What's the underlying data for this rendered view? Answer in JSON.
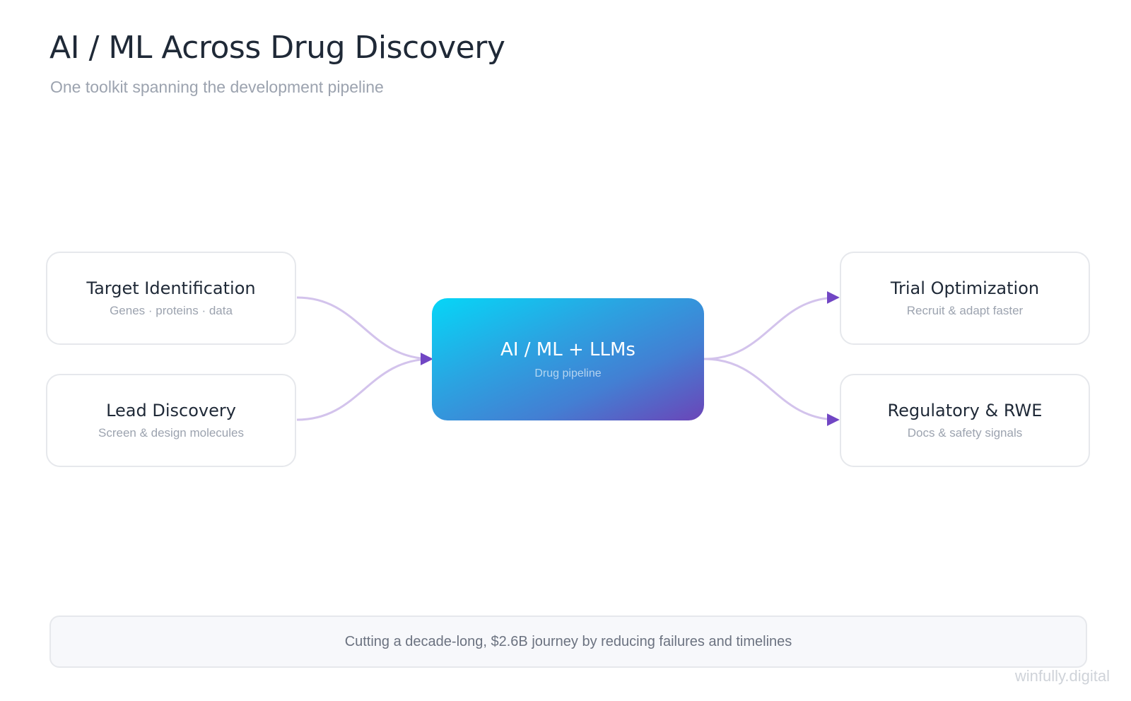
{
  "title": "AI / ML Across Drug Discovery",
  "subtitle": "One toolkit spanning the development pipeline",
  "center": {
    "title": "AI / ML + LLMs",
    "subtitle": "Drug pipeline"
  },
  "nodes": [
    {
      "title": "Target Identification",
      "subtitle": "Genes · proteins · data"
    },
    {
      "title": "Lead Discovery",
      "subtitle": "Screen & design molecules"
    },
    {
      "title": "Trial Optimization",
      "subtitle": "Recruit & adapt faster"
    },
    {
      "title": "Regulatory & RWE",
      "subtitle": "Docs & safety signals"
    }
  ],
  "footer": "Cutting a decade-long, $2.6B journey by reducing failures and timelines",
  "watermark": "winfully.digital",
  "colors": {
    "connector": "#d3c3ec",
    "arrowhead": "#7146c4",
    "gradient_start": "#06d6f7",
    "gradient_end": "#6b45b8"
  }
}
